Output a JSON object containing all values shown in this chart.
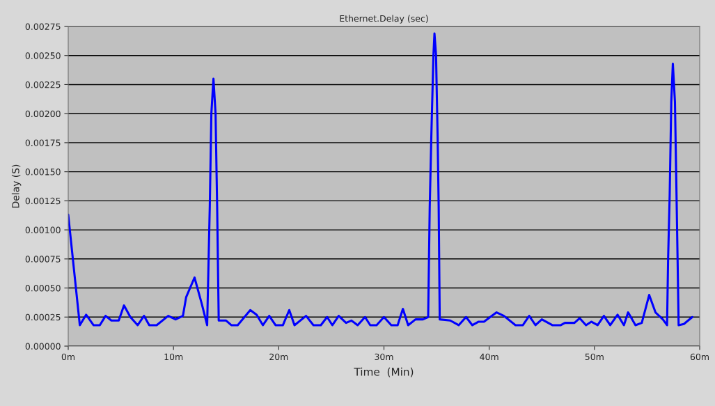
{
  "chart_data": {
    "type": "line",
    "title": "Ethernet.Delay (sec)",
    "xlabel": "Time  (Min)",
    "ylabel": "Delay (S)",
    "x": [
      0.0,
      1.1,
      1.7,
      2.4,
      3.0,
      3.55,
      4.1,
      4.8,
      5.3,
      5.9,
      6.6,
      7.2,
      7.7,
      8.4,
      9.5,
      10.2,
      10.9,
      11.2,
      12.0,
      12.7,
      13.2,
      13.45,
      13.6,
      13.8,
      14.0,
      14.15,
      14.3,
      15.0,
      15.5,
      16.1,
      17.3,
      17.9,
      18.5,
      19.1,
      19.7,
      20.4,
      21.0,
      21.5,
      22.6,
      23.3,
      24.0,
      24.6,
      25.1,
      25.7,
      26.4,
      26.9,
      27.5,
      28.2,
      28.7,
      29.3,
      30.0,
      30.7,
      31.3,
      31.8,
      32.3,
      33.0,
      33.7,
      34.2,
      34.35,
      34.5,
      34.7,
      34.8,
      34.95,
      35.1,
      35.2,
      35.3,
      36.3,
      37.1,
      37.8,
      38.4,
      39.0,
      39.5,
      40.7,
      41.4,
      42.5,
      43.2,
      43.8,
      44.4,
      45.0,
      46.0,
      46.8,
      47.2,
      48.1,
      48.6,
      49.2,
      49.7,
      50.3,
      50.9,
      51.5,
      52.2,
      52.8,
      53.2,
      53.9,
      54.5,
      55.2,
      55.8,
      56.5,
      56.9,
      57.0,
      57.15,
      57.3,
      57.45,
      57.65,
      57.8,
      57.9,
      58.0,
      58.5,
      59.3
    ],
    "series": [
      {
        "color": "#0000ff",
        "values": [
          0.00113,
          0.00018,
          0.00027,
          0.00018,
          0.00018,
          0.00026,
          0.00022,
          0.00022,
          0.00035,
          0.00025,
          0.00018,
          0.00026,
          0.00018,
          0.00018,
          0.00026,
          0.00023,
          0.00026,
          0.00042,
          0.00059,
          0.00036,
          0.00018,
          0.0012,
          0.002,
          0.0023,
          0.002,
          0.0012,
          0.00022,
          0.00022,
          0.00018,
          0.00018,
          0.00031,
          0.00027,
          0.00018,
          0.00026,
          0.00018,
          0.00018,
          0.00031,
          0.00018,
          0.00026,
          0.00018,
          0.00018,
          0.00025,
          0.00018,
          0.00026,
          0.0002,
          0.00022,
          0.00018,
          0.00025,
          0.00018,
          0.00018,
          0.00025,
          0.00018,
          0.00018,
          0.00032,
          0.00018,
          0.00023,
          0.00023,
          0.00025,
          0.0012,
          0.0018,
          0.0025,
          0.00269,
          0.0025,
          0.0018,
          0.0012,
          0.00023,
          0.00022,
          0.00018,
          0.00025,
          0.00018,
          0.00021,
          0.00021,
          0.00029,
          0.00026,
          0.00018,
          0.00018,
          0.00026,
          0.00018,
          0.00023,
          0.00018,
          0.00018,
          0.0002,
          0.0002,
          0.00024,
          0.00018,
          0.00021,
          0.00018,
          0.00026,
          0.00018,
          0.00027,
          0.00018,
          0.00029,
          0.00018,
          0.0002,
          0.00044,
          0.00029,
          0.00023,
          0.00018,
          0.00075,
          0.0013,
          0.0021,
          0.00243,
          0.0021,
          0.0013,
          0.00075,
          0.00018,
          0.00019,
          0.00025
        ]
      }
    ],
    "xlim": [
      0,
      60
    ],
    "xticks": [
      {
        "value": 0,
        "label": "0m"
      },
      {
        "value": 10,
        "label": "10m"
      },
      {
        "value": 20,
        "label": "20m"
      },
      {
        "value": 30,
        "label": "30m"
      },
      {
        "value": 40,
        "label": "40m"
      },
      {
        "value": 50,
        "label": "50m"
      },
      {
        "value": 60,
        "label": "60m"
      }
    ],
    "ylim": [
      0,
      0.00275
    ],
    "yticks": [
      {
        "value": 0,
        "label": "0.00000"
      },
      {
        "value": 0.00025,
        "label": "0.00025"
      },
      {
        "value": 0.0005,
        "label": "0.00050"
      },
      {
        "value": 0.00075,
        "label": "0.00075"
      },
      {
        "value": 0.001,
        "label": "0.00100"
      },
      {
        "value": 0.00125,
        "label": "0.00125"
      },
      {
        "value": 0.0015,
        "label": "0.00150"
      },
      {
        "value": 0.00175,
        "label": "0.00175"
      },
      {
        "value": 0.002,
        "label": "0.00200"
      },
      {
        "value": 0.00225,
        "label": "0.00225"
      },
      {
        "value": 0.0025,
        "label": "0.00250"
      },
      {
        "value": 0.00275,
        "label": "0.00275"
      }
    ],
    "grid": "y",
    "marker": "none",
    "line_style": "solid"
  }
}
